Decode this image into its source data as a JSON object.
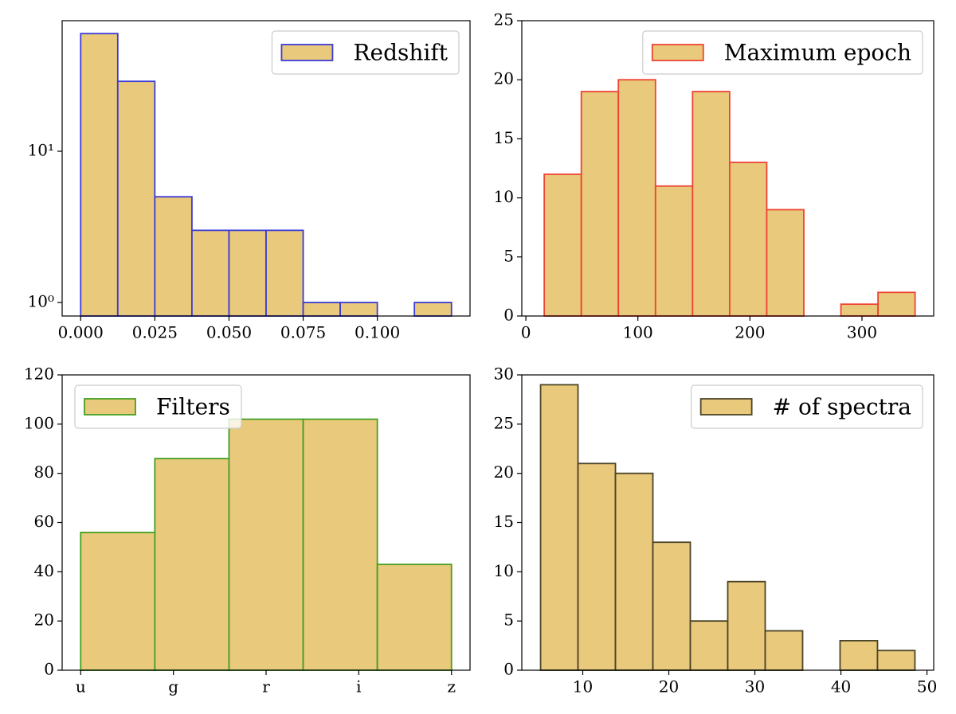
{
  "chart_data": [
    {
      "type": "histogram",
      "legend_label": "Redshift",
      "legend": "upper right",
      "bins": [
        0,
        0.0125,
        0.025,
        0.0375,
        0.05,
        0.0625,
        0.075,
        0.0875,
        0.1,
        0.1125,
        0.125
      ],
      "values": [
        60,
        29,
        5,
        3,
        3,
        3,
        1,
        1,
        0,
        1
      ],
      "color": "#e9c97b",
      "edgecolor": "#3b3bd6",
      "xlim": [
        -0.00625,
        0.13125
      ],
      "xticks": [
        {
          "value": 0,
          "label": "0.000"
        },
        0.025,
        {
          "value": 0.05,
          "label": "0.050"
        },
        0.075,
        {
          "value": 0.1,
          "label": "0.100"
        }
      ],
      "yscale": "log",
      "ylim": [
        0.814,
        73
      ],
      "yticks": [
        {
          "value": 1,
          "label": "10⁰"
        },
        {
          "value": 10,
          "label": "10¹"
        }
      ]
    },
    {
      "type": "histogram",
      "legend_label": "Maximum epoch",
      "legend": "upper right",
      "bins": [
        16.4,
        49.5,
        82.6,
        115.7,
        148.8,
        181.9,
        215,
        248.1,
        281.2,
        314.3,
        347.4
      ],
      "values": [
        12,
        19,
        20,
        11,
        19,
        13,
        9,
        0,
        1,
        2
      ],
      "color": "#e9c97b",
      "edgecolor": "#ee4433",
      "xlim": [
        -3.6,
        364
      ],
      "xticks": [
        0,
        100,
        200,
        300
      ],
      "ylim": [
        0,
        25
      ],
      "yticks": [
        0,
        5,
        10,
        15,
        20,
        25
      ]
    },
    {
      "type": "histogram",
      "legend_label": "Filters",
      "legend": "upper left",
      "bins": [
        0,
        0.8,
        1.6,
        2.4,
        3.2,
        4
      ],
      "values": [
        56,
        86,
        102,
        102,
        43
      ],
      "color": "#e9c97b",
      "edgecolor": "#44a022",
      "xlim": [
        -0.2,
        4.2
      ],
      "xticks": [
        {
          "value": 0,
          "label": "u"
        },
        {
          "value": 1,
          "label": "g"
        },
        {
          "value": 2,
          "label": "r"
        },
        {
          "value": 3,
          "label": "i"
        },
        {
          "value": 4,
          "label": "z"
        }
      ],
      "ylim": [
        0,
        120
      ],
      "yticks": [
        0,
        20,
        40,
        60,
        80,
        100,
        120
      ]
    },
    {
      "type": "histogram",
      "legend_label": "# of spectra",
      "legend": "upper right",
      "bins": [
        5.1,
        9.45,
        13.8,
        18.15,
        22.5,
        26.85,
        31.2,
        35.55,
        39.9,
        44.25,
        48.6
      ],
      "values": [
        29,
        21,
        20,
        13,
        5,
        9,
        4,
        0,
        3,
        2
      ],
      "color": "#e9c97b",
      "edgecolor": "#4a4428",
      "xlim": [
        2.92,
        50.78
      ],
      "xticks": [
        10,
        20,
        30,
        40,
        50
      ],
      "ylim": [
        0,
        30
      ],
      "yticks": [
        0,
        5,
        10,
        15,
        20,
        25,
        30
      ]
    }
  ]
}
